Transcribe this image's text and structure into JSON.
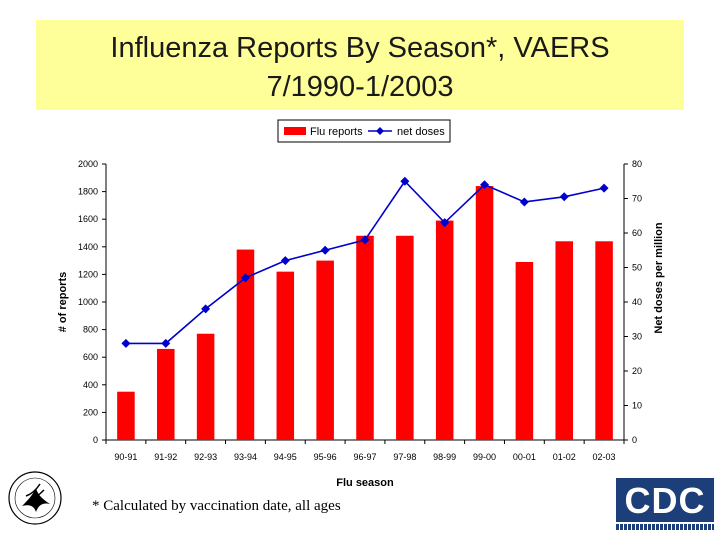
{
  "header": {
    "title_line1": "Influenza Reports By Season*, VAERS",
    "title_line2": "7/1990-1/2003"
  },
  "footnote": "* Calculated by vaccination date, all ages",
  "logos": {
    "left_icon": "hhs-eagle-icon",
    "right_text": "CDC"
  },
  "colors": {
    "title_bg": "#ffff99",
    "bar": "#ff0000",
    "line": "#0000cc",
    "cdc_blue": "#1c3f7a"
  },
  "chart_data": {
    "type": "bar",
    "title": "",
    "xlabel": "Flu season",
    "ylabel": "# of reports",
    "y2label": "Net doses per million",
    "categories": [
      "90-91",
      "91-92",
      "92-93",
      "93-94",
      "94-95",
      "95-96",
      "96-97",
      "97-98",
      "98-99",
      "99-00",
      "00-01",
      "01-02",
      "02-03"
    ],
    "series": [
      {
        "name": "Flu reports",
        "type": "bar",
        "axis": "left",
        "values": [
          350,
          660,
          770,
          1380,
          1220,
          1300,
          1480,
          1480,
          1590,
          1840,
          1290,
          1440,
          1440
        ]
      },
      {
        "name": "net doses",
        "type": "line",
        "axis": "right",
        "values": [
          28,
          28,
          38,
          47,
          52,
          55,
          58,
          75,
          63,
          74,
          69,
          70.5,
          73
        ]
      }
    ],
    "ylim": [
      0,
      2000
    ],
    "y_ticks": [
      "0",
      "200",
      "400",
      "600",
      "800",
      "1000",
      "1200",
      "1400",
      "1600",
      "1800",
      "2000"
    ],
    "y2lim": [
      0,
      80
    ],
    "y2_ticks": [
      "0",
      "10",
      "20",
      "30",
      "40",
      "50",
      "60",
      "70",
      "80"
    ],
    "legend_position": "top-center",
    "grid": false
  }
}
